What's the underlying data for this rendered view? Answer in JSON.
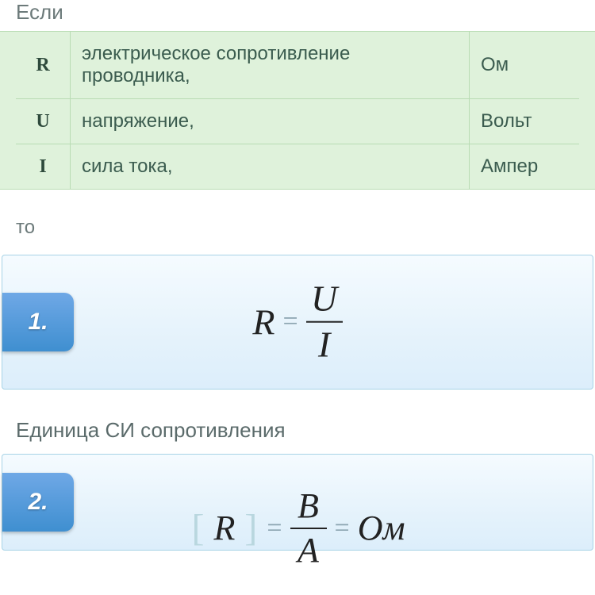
{
  "intro": "Если",
  "table": {
    "rows": [
      {
        "symbol": "R",
        "description": "электрическое сопротивление проводника,",
        "unit": "Ом"
      },
      {
        "symbol": "U",
        "description": "напряжение,",
        "unit": "Вольт"
      },
      {
        "symbol": "I",
        "description": "сила тока,",
        "unit": "Ампер"
      }
    ]
  },
  "then": "то",
  "formula1": {
    "badge": "1.",
    "lhs": "R",
    "numerator": "U",
    "denominator": "I"
  },
  "caption": "Единица СИ сопротивления",
  "formula2": {
    "badge": "2.",
    "bracketed": "R",
    "numerator": "В",
    "denominator": "А",
    "result": "Ом"
  },
  "colors": {
    "table_bg": "#dff2db",
    "table_border": "#b9dcb4",
    "card_border": "#a7d3e6",
    "badge_top": "#6fa8e6",
    "badge_bottom": "#3f8fd0",
    "text_muted": "#6c7a7a"
  }
}
